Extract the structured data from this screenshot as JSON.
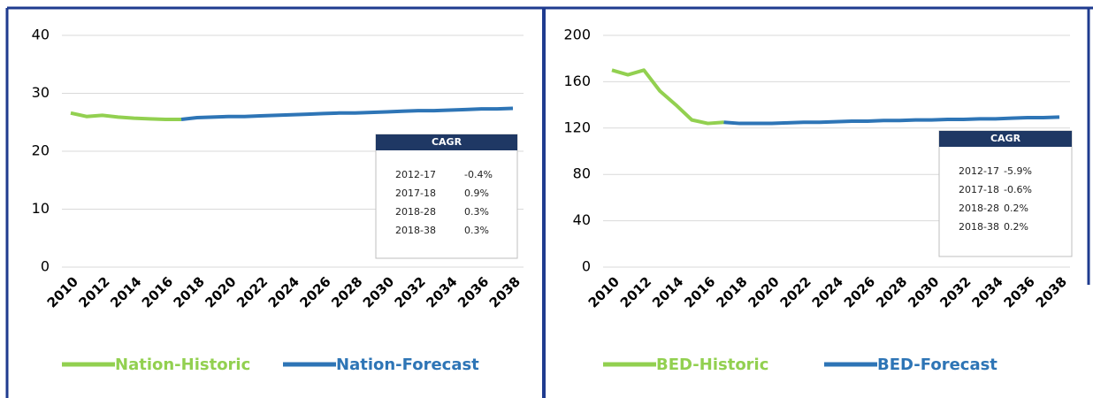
{
  "chart_data": [
    {
      "type": "line",
      "x": [
        2010,
        2011,
        2012,
        2013,
        2014,
        2015,
        2016,
        2017,
        2018,
        2019,
        2020,
        2021,
        2022,
        2023,
        2024,
        2025,
        2026,
        2027,
        2028,
        2029,
        2030,
        2031,
        2032,
        2033,
        2034,
        2035,
        2036,
        2037,
        2038
      ],
      "xlim": [
        2010,
        2038
      ],
      "xticks": [
        2010,
        2012,
        2014,
        2016,
        2018,
        2020,
        2022,
        2024,
        2026,
        2028,
        2030,
        2032,
        2034,
        2036,
        2038
      ],
      "ylim": [
        0,
        40
      ],
      "yticks": [
        0,
        10,
        20,
        30,
        40
      ],
      "grid": true,
      "series": [
        {
          "name": "Nation-Historic",
          "color": "#92d050",
          "values": [
            26.6,
            26.0,
            26.2,
            25.9,
            25.7,
            25.6,
            25.5,
            25.5,
            null,
            null,
            null,
            null,
            null,
            null,
            null,
            null,
            null,
            null,
            null,
            null,
            null,
            null,
            null,
            null,
            null,
            null,
            null,
            null,
            null
          ]
        },
        {
          "name": "Nation-Forecast",
          "color": "#2e75b6",
          "values": [
            null,
            null,
            null,
            null,
            null,
            null,
            null,
            25.5,
            25.8,
            25.9,
            26.0,
            26.0,
            26.1,
            26.2,
            26.3,
            26.4,
            26.5,
            26.6,
            26.6,
            26.7,
            26.8,
            26.9,
            27.0,
            27.0,
            27.1,
            27.2,
            27.3,
            27.3,
            27.4
          ]
        }
      ],
      "cagr_table": {
        "title": "CAGR",
        "rows": [
          [
            "2012-17",
            "-0.4%"
          ],
          [
            "2017-18",
            "0.9%"
          ],
          [
            "2018-28",
            "0.3%"
          ],
          [
            "2018-38",
            "0.3%"
          ]
        ]
      }
    },
    {
      "type": "line",
      "x": [
        2010,
        2011,
        2012,
        2013,
        2014,
        2015,
        2016,
        2017,
        2018,
        2019,
        2020,
        2021,
        2022,
        2023,
        2024,
        2025,
        2026,
        2027,
        2028,
        2029,
        2030,
        2031,
        2032,
        2033,
        2034,
        2035,
        2036,
        2037,
        2038
      ],
      "xlim": [
        2010,
        2038
      ],
      "xticks": [
        2010,
        2012,
        2014,
        2016,
        2018,
        2020,
        2022,
        2024,
        2026,
        2028,
        2030,
        2032,
        2034,
        2036,
        2038
      ],
      "ylim": [
        0,
        200
      ],
      "yticks": [
        0,
        40,
        80,
        120,
        160,
        200
      ],
      "grid": true,
      "series": [
        {
          "name": "BED-Historic",
          "color": "#92d050",
          "values": [
            170,
            166,
            170,
            152,
            140,
            127,
            124,
            125,
            null,
            null,
            null,
            null,
            null,
            null,
            null,
            null,
            null,
            null,
            null,
            null,
            null,
            null,
            null,
            null,
            null,
            null,
            null,
            null,
            null
          ]
        },
        {
          "name": "BED-Forecast",
          "color": "#2e75b6",
          "values": [
            null,
            null,
            null,
            null,
            null,
            null,
            null,
            125,
            124,
            124,
            124,
            124.5,
            125,
            125,
            125.5,
            126,
            126,
            126.5,
            126.5,
            127,
            127,
            127.5,
            127.5,
            128,
            128,
            128.5,
            129,
            129,
            129.5
          ]
        }
      ],
      "cagr_table": {
        "title": "CAGR",
        "rows": [
          [
            "2012-17",
            "-5.9%"
          ],
          [
            "2017-18",
            "-0.6%"
          ],
          [
            "2018-28",
            "0.2%"
          ],
          [
            "2018-38",
            "0.2%"
          ]
        ]
      }
    }
  ]
}
